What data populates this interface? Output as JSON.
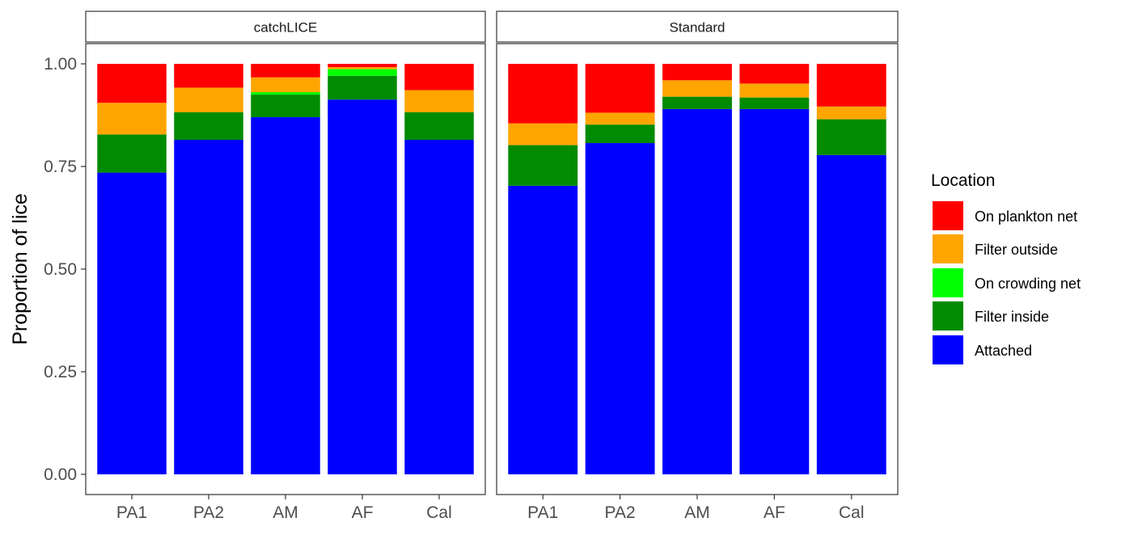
{
  "chart_data": {
    "type": "bar",
    "stacked": true,
    "ylabel": "Proportion of lice",
    "xlabel": "",
    "ylim": [
      0,
      1
    ],
    "yticks": [
      "0.00",
      "0.25",
      "0.50",
      "0.75",
      "1.00"
    ],
    "ytick_values": [
      0,
      0.25,
      0.5,
      0.75,
      1.0
    ],
    "categories": [
      "PA1",
      "PA2",
      "AM",
      "AF",
      "Cal"
    ],
    "legend": {
      "title": "Location",
      "placement": "right",
      "entries": [
        {
          "name": "On plankton net",
          "color": "#FF0000"
        },
        {
          "name": "Filter outside",
          "color": "#FFA500"
        },
        {
          "name": "On crowding net",
          "color": "#00FF00"
        },
        {
          "name": "Filter inside",
          "color": "#008B00"
        },
        {
          "name": "Attached",
          "color": "#0000FF"
        }
      ]
    },
    "panels": [
      {
        "title": "catchLICE",
        "series": [
          {
            "name": "Attached",
            "color": "#0000FF",
            "values": [
              0.735,
              0.815,
              0.87,
              0.913,
              0.815
            ]
          },
          {
            "name": "Filter inside",
            "color": "#008B00",
            "values": [
              0.093,
              0.067,
              0.055,
              0.058,
              0.067
            ]
          },
          {
            "name": "On crowding net",
            "color": "#00FF00",
            "values": [
              0.0,
              0.0,
              0.006,
              0.016,
              0.0
            ]
          },
          {
            "name": "Filter outside",
            "color": "#FFA500",
            "values": [
              0.077,
              0.06,
              0.036,
              0.005,
              0.054
            ]
          },
          {
            "name": "On plankton net",
            "color": "#FF0000",
            "values": [
              0.095,
              0.058,
              0.033,
              0.008,
              0.064
            ]
          }
        ]
      },
      {
        "title": "Standard",
        "series": [
          {
            "name": "Attached",
            "color": "#0000FF",
            "values": [
              0.703,
              0.807,
              0.89,
              0.89,
              0.778
            ]
          },
          {
            "name": "Filter inside",
            "color": "#008B00",
            "values": [
              0.099,
              0.045,
              0.03,
              0.028,
              0.087
            ]
          },
          {
            "name": "On crowding net",
            "color": "#00FF00",
            "values": [
              0.0,
              0.0,
              0.0,
              0.0,
              0.0
            ]
          },
          {
            "name": "Filter outside",
            "color": "#FFA500",
            "values": [
              0.053,
              0.029,
              0.04,
              0.034,
              0.031
            ]
          },
          {
            "name": "On plankton net",
            "color": "#FF0000",
            "values": [
              0.145,
              0.119,
              0.04,
              0.048,
              0.104
            ]
          }
        ]
      }
    ]
  }
}
